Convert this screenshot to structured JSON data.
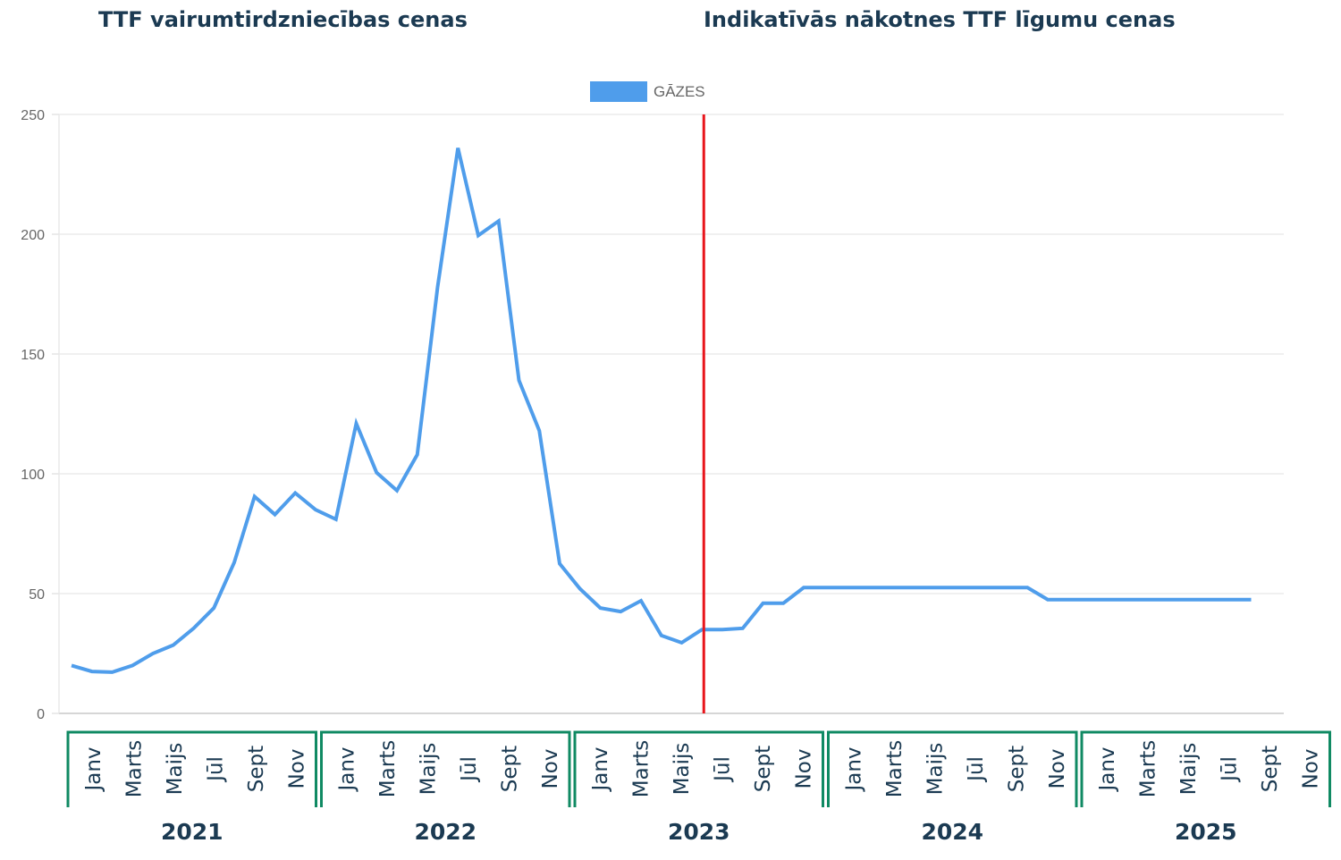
{
  "headings": {
    "left": "TTF vairumtirdzniecības cenas",
    "right": "Indikatīvās nākotnes TTF līgumu cenas"
  },
  "chart_data": {
    "type": "line",
    "legend": {
      "label": "GĀZES",
      "position": "top-center",
      "color": "#4f9deb"
    },
    "series": [
      {
        "name": "GĀZES",
        "color": "#4f9deb",
        "values": [
          20,
          17.5,
          17.2,
          20,
          25,
          28.5,
          35.5,
          44,
          63,
          90.5,
          83,
          92,
          85,
          81,
          121,
          100.5,
          93,
          108,
          178,
          236,
          199.5,
          205.5,
          139,
          118,
          62.5,
          52,
          44,
          42.5,
          47,
          32.5,
          29.5,
          35,
          35,
          35.5,
          46,
          46,
          52.5,
          52.5,
          52.5,
          52.5,
          52.5,
          52.5,
          52.5,
          52.5,
          52.5,
          52.5,
          52.5,
          52.5,
          47.5,
          47.5,
          47.5,
          47.5,
          47.5,
          47.5,
          47.5,
          47.5,
          47.5,
          47.5,
          47.5
        ]
      }
    ],
    "ylim": [
      0,
      250
    ],
    "y_ticks": [
      0,
      50,
      100,
      150,
      200,
      250
    ],
    "grid": true,
    "divider_index": 31,
    "divider_color": "#e8151b",
    "month_labels": [
      "Janv",
      "Marts",
      "Maijs",
      "Jūl",
      "Sept",
      "Nov"
    ],
    "years": [
      "2021",
      "2022",
      "2023",
      "2024",
      "2025"
    ],
    "group_border_color": "#108a63"
  }
}
